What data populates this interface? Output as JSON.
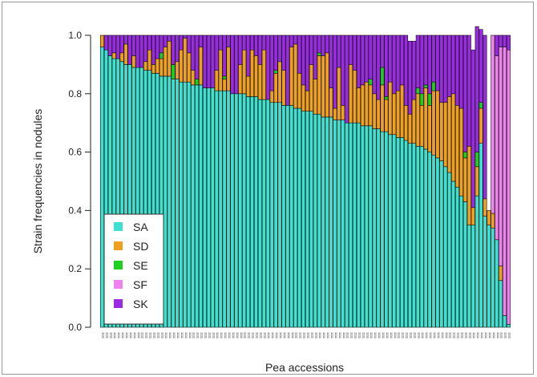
{
  "chart_data": {
    "type": "bar",
    "stacked": true,
    "normalized": true,
    "xlabel": "Pea accessions",
    "ylabel": "Strain frequencies in nodules",
    "ylim": [
      0,
      1
    ],
    "yticks": [
      "0.0",
      "0.2",
      "0.4",
      "0.6",
      "0.8",
      "1.0"
    ],
    "ytick_values": [
      0,
      0.2,
      0.4,
      0.6,
      0.8,
      1.0
    ],
    "legend_position": "bottom-left",
    "grid": false,
    "n_accessions": 104,
    "x_tick_label_placeholder": "1111",
    "series": [
      {
        "name": "SA",
        "color": "#40e0d0",
        "values": [
          0.96,
          0.95,
          0.93,
          0.92,
          0.92,
          0.91,
          0.9,
          0.9,
          0.89,
          0.89,
          0.89,
          0.88,
          0.88,
          0.87,
          0.87,
          0.86,
          0.86,
          0.86,
          0.85,
          0.85,
          0.84,
          0.84,
          0.84,
          0.83,
          0.83,
          0.83,
          0.82,
          0.82,
          0.82,
          0.81,
          0.81,
          0.81,
          0.81,
          0.8,
          0.8,
          0.8,
          0.8,
          0.79,
          0.79,
          0.79,
          0.78,
          0.78,
          0.78,
          0.77,
          0.77,
          0.77,
          0.76,
          0.76,
          0.76,
          0.75,
          0.75,
          0.74,
          0.74,
          0.74,
          0.73,
          0.73,
          0.72,
          0.72,
          0.72,
          0.71,
          0.71,
          0.71,
          0.7,
          0.7,
          0.7,
          0.7,
          0.69,
          0.69,
          0.69,
          0.68,
          0.68,
          0.67,
          0.67,
          0.66,
          0.66,
          0.65,
          0.65,
          0.64,
          0.63,
          0.63,
          0.62,
          0.62,
          0.61,
          0.6,
          0.59,
          0.58,
          0.57,
          0.55,
          0.53,
          0.5,
          0.48,
          0.45,
          0.43,
          0.35,
          0.35,
          0.45,
          0.63,
          0.38,
          0.35,
          0.34,
          0.3,
          0.16,
          0.04,
          0.01
        ]
      },
      {
        "name": "SD",
        "color": "#f0a020",
        "values": [
          0.04,
          0.0,
          0.0,
          0.02,
          0.0,
          0.03,
          0.07,
          0.0,
          0.04,
          0.0,
          0.0,
          0.03,
          0.07,
          0.03,
          0.05,
          0.06,
          0.1,
          0.12,
          0.0,
          0.06,
          0.11,
          0.15,
          0.1,
          0.05,
          0.0,
          0.13,
          0.0,
          0.0,
          0.0,
          0.07,
          0.14,
          0.04,
          0.15,
          0.0,
          0.0,
          0.1,
          0.15,
          0.07,
          0.16,
          0.14,
          0.12,
          0.17,
          0.0,
          0.04,
          0.1,
          0.14,
          0.12,
          0.0,
          0.2,
          0.22,
          0.12,
          0.09,
          0.07,
          0.16,
          0.12,
          0.2,
          0.21,
          0.22,
          0.1,
          0.04,
          0.18,
          0.05,
          0.0,
          0.2,
          0.18,
          0.12,
          0.14,
          0.15,
          0.14,
          0.12,
          0.1,
          0.16,
          0.11,
          0.18,
          0.14,
          0.16,
          0.18,
          0.12,
          0.1,
          0.15,
          0.18,
          0.14,
          0.21,
          0.16,
          0.22,
          0.23,
          0.2,
          0.22,
          0.26,
          0.3,
          0.28,
          0.3,
          0.15,
          0.27,
          0.06,
          0.1,
          0.12,
          0.06,
          0.05,
          0.05,
          0.0,
          0.05,
          0.0,
          0.0
        ]
      },
      {
        "name": "SE",
        "color": "#20d020",
        "values": [
          0,
          0,
          0,
          0,
          0,
          0,
          0,
          0,
          0,
          0,
          0,
          0,
          0,
          0,
          0,
          0.02,
          0,
          0,
          0.05,
          0,
          0,
          0,
          0,
          0,
          0.02,
          0,
          0,
          0,
          0,
          0,
          0,
          0.01,
          0,
          0,
          0,
          0,
          0,
          0,
          0,
          0,
          0,
          0,
          0,
          0,
          0.01,
          0,
          0,
          0,
          0,
          0,
          0,
          0,
          0,
          0,
          0,
          0.01,
          0,
          0,
          0,
          0,
          0,
          0,
          0,
          0,
          0,
          0,
          0,
          0,
          0.02,
          0,
          0,
          0.06,
          0.01,
          0,
          0,
          0,
          0,
          0,
          0,
          0,
          0.02,
          0.04,
          0.01,
          0.04,
          0.03,
          0,
          0,
          0,
          0,
          0,
          0,
          0,
          0.02,
          0,
          0,
          0.05,
          0.02,
          0,
          0,
          0,
          0,
          0,
          0,
          0
        ]
      },
      {
        "name": "SF",
        "color": "#ee82ee",
        "values": [
          0,
          0,
          0,
          0,
          0,
          0,
          0,
          0,
          0,
          0,
          0,
          0,
          0,
          0,
          0,
          0,
          0,
          0,
          0,
          0,
          0,
          0,
          0,
          0,
          0,
          0,
          0,
          0,
          0,
          0,
          0,
          0,
          0,
          0,
          0,
          0,
          0,
          0,
          0,
          0,
          0,
          0,
          0,
          0,
          0,
          0,
          0,
          0,
          0,
          0,
          0,
          0,
          0,
          0,
          0,
          0,
          0,
          0,
          0,
          0,
          0,
          0,
          0,
          0,
          0,
          0,
          0,
          0,
          0,
          0,
          0,
          0,
          0,
          0,
          0,
          0,
          0,
          0,
          0,
          0,
          0,
          0,
          0,
          0,
          0,
          0,
          0,
          0,
          0,
          0,
          0,
          0,
          0,
          0,
          0,
          0,
          0,
          0,
          0,
          0.61,
          0.63,
          0.75,
          0.92,
          0.94
        ]
      },
      {
        "name": "SK",
        "color": "#9a2be2",
        "values": [
          0.0,
          0.05,
          0.07,
          0.06,
          0.08,
          0.06,
          0.03,
          0.1,
          0.07,
          0.11,
          0.11,
          0.09,
          0.05,
          0.1,
          0.08,
          0.06,
          0.04,
          0.02,
          0.1,
          0.09,
          0.05,
          0.01,
          0.06,
          0.12,
          0.15,
          0.04,
          0.18,
          0.18,
          0.18,
          0.12,
          0.05,
          0.14,
          0.04,
          0.2,
          0.2,
          0.1,
          0.05,
          0.14,
          0.05,
          0.07,
          0.1,
          0.05,
          0.22,
          0.19,
          0.12,
          0.09,
          0.12,
          0.24,
          0.04,
          0.03,
          0.13,
          0.17,
          0.19,
          0.1,
          0.15,
          0.06,
          0.07,
          0.06,
          0.18,
          0.25,
          0.11,
          0.24,
          0.3,
          0.1,
          0.12,
          0.18,
          0.17,
          0.16,
          0.15,
          0.2,
          0.22,
          0.11,
          0.21,
          0.16,
          0.2,
          0.19,
          0.17,
          0.24,
          0.25,
          0.2,
          0.18,
          0.2,
          0.17,
          0.2,
          0.16,
          0.19,
          0.23,
          0.23,
          0.21,
          0.2,
          0.24,
          0.25,
          0.4,
          0.38,
          0.54,
          0.43,
          0.25,
          0.56,
          0.0,
          0.0,
          0.07,
          0.04,
          0.04,
          0.05
        ]
      }
    ]
  }
}
